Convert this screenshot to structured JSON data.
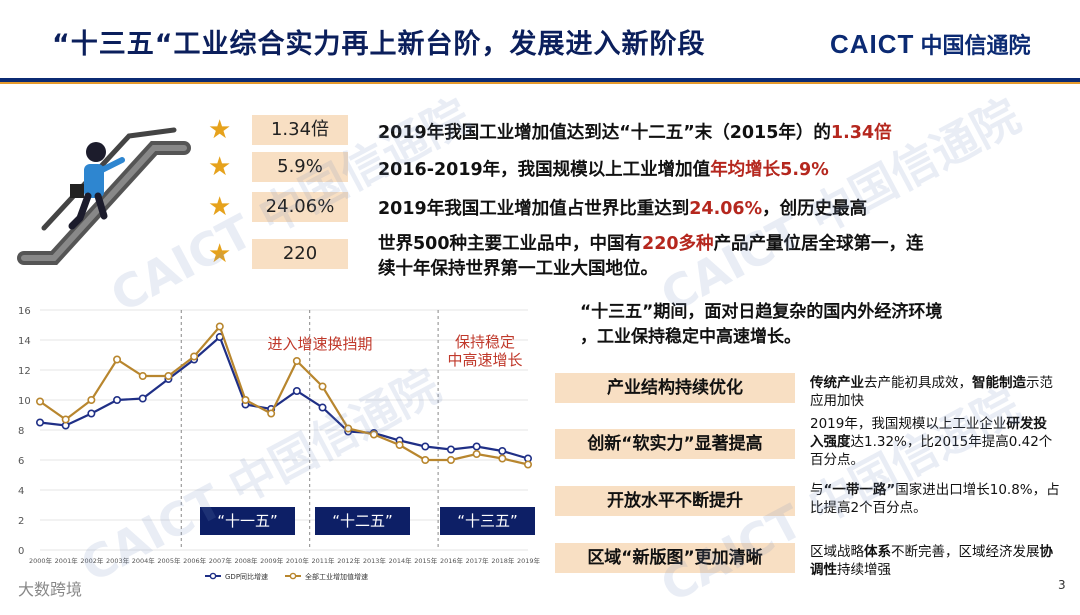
{
  "header": {
    "title": "“十三五“工业综合实力再上新台阶，发展进入新阶段",
    "logo_mark": "CAICT",
    "logo_name": "中国信通院"
  },
  "kpis": [
    {
      "value": "1.34倍",
      "text_pre": "2019年我国工业增加值达到达“十二五”末（2015年）的",
      "text_hl": "1.34倍",
      "text_post": ""
    },
    {
      "value": "5.9%",
      "text_pre": "2016-2019年，我国规模以上工业增加值",
      "text_hl": "年均增长5.9%",
      "text_post": ""
    },
    {
      "value": "24.06%",
      "text_pre": "2019年我国工业增加值占世界比重达到",
      "text_hl": "24.06%",
      "text_post": "，创历史最高"
    },
    {
      "value": "220",
      "text_pre": "世界500种主要工业品中，中国有",
      "text_hl": "220多种",
      "text_post": "产品产量位居全球第一，连",
      "text_line2": "续十年保持世界第一工业大国地位。"
    }
  ],
  "chart_data": {
    "type": "line",
    "x": [
      "2000年",
      "2001年",
      "2002年",
      "2003年",
      "2004年",
      "2005年",
      "2006年",
      "2007年",
      "2008年",
      "2009年",
      "2010年",
      "2011年",
      "2012年",
      "2013年",
      "2014年",
      "2015年",
      "2016年",
      "2017年",
      "2018年",
      "2019年"
    ],
    "ylim": [
      0,
      16
    ],
    "yticks": [
      0,
      2,
      4,
      6,
      8,
      10,
      12,
      14,
      16
    ],
    "series": [
      {
        "name": "GDP同比增速",
        "color": "#1f2f86",
        "values": [
          8.5,
          8.3,
          9.1,
          10.0,
          10.1,
          11.4,
          12.7,
          14.2,
          9.7,
          9.4,
          10.6,
          9.5,
          7.9,
          7.8,
          7.3,
          6.9,
          6.7,
          6.9,
          6.6,
          6.1
        ]
      },
      {
        "name": "全部工业增加值增速",
        "color": "#b8862e",
        "values": [
          9.9,
          8.7,
          10.0,
          12.7,
          11.6,
          11.6,
          12.9,
          14.9,
          10.0,
          9.1,
          12.6,
          10.9,
          8.1,
          7.7,
          7.0,
          6.0,
          6.0,
          6.4,
          6.1,
          5.7
        ]
      }
    ],
    "annotations": [
      {
        "text": "进入增速换挡期"
      },
      {
        "text": "保持稳定\n中高速增长"
      }
    ],
    "periods": [
      "“十一五”",
      "“十二五”",
      "“十三五”"
    ]
  },
  "right_panel": {
    "intro_line1": "“十三五”期间，面对日趋复杂的国内外经济环境",
    "intro_line2": "，工业保持稳定中高速增长。",
    "items": [
      {
        "label": "产业结构持续优化",
        "desc_html": "<b>传统产业</b>去产能初具成效，<b>智能制造</b>示范应用加快"
      },
      {
        "label": "创新“软实力”显著提高",
        "desc_html": "2019年，我国规模以上工业企业<b>研发投入强度</b>达1.32%，比2015年提高0.42个百分点。"
      },
      {
        "label": "开放水平不断提升",
        "desc_html": "与<b>“一带一路”</b>国家进出口增长10.8%，占比提高2个百分点。"
      },
      {
        "label": "区域“新版图”更加清晰",
        "desc_html": "区域战略<b>体系</b>不断完善，区域经济发展<b>协调性</b>持续增强"
      }
    ]
  },
  "footer": {
    "brand": "大数跨境",
    "page_number": "3"
  },
  "watermark_text": "CAICT 中国信通院",
  "colors": {
    "navy": "#0b2a73",
    "orange": "#e59a2c",
    "highlight_red": "#b5271e",
    "peach": "#f8dfc3",
    "star": "#e6a21c"
  }
}
